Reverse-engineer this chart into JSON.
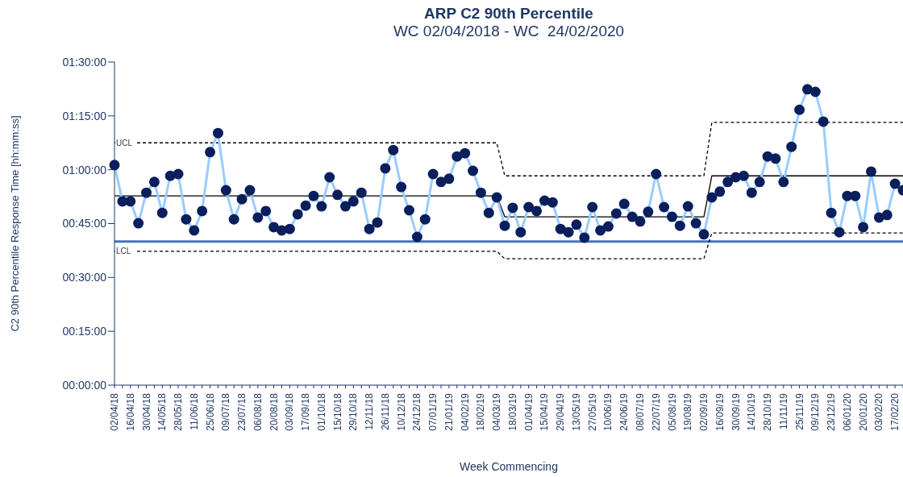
{
  "chart_data": {
    "type": "line",
    "title": "ARP C2 90th Percentile",
    "subtitle": "WC 02/04/2018 - WC  24/02/2020",
    "xlabel": "Week Commencing",
    "ylabel": "C2 90th Percentile Response Time [hh:mm:ss]",
    "categories": [
      "02/04/18",
      null,
      "16/04/18",
      null,
      "30/04/18",
      null,
      "14/05/18",
      null,
      "28/05/18",
      null,
      "11/06/18",
      null,
      "25/06/18",
      null,
      "09/07/18",
      null,
      "23/07/18",
      null,
      "06/08/18",
      null,
      "20/08/18",
      null,
      "03/09/18",
      null,
      "17/09/18",
      null,
      "01/10/18",
      null,
      "15/10/18",
      null,
      "29/10/18",
      null,
      "12/11/18",
      null,
      "26/11/18",
      null,
      "10/12/18",
      null,
      "24/12/18",
      null,
      "07/01/19",
      null,
      "21/01/19",
      null,
      "04/02/19",
      null,
      "18/02/19",
      null,
      "04/03/19",
      null,
      "18/03/19",
      null,
      "01/04/19",
      null,
      "15/04/19",
      null,
      "29/04/19",
      null,
      "13/05/19",
      null,
      "27/05/19",
      null,
      "10/06/19",
      null,
      "24/06/19",
      null,
      "08/07/19",
      null,
      "22/07/19",
      null,
      "05/08/19",
      null,
      "19/08/19",
      null,
      "02/09/19",
      null,
      "16/09/19",
      null,
      "30/09/19",
      null,
      "14/10/19",
      null,
      "28/10/19",
      null,
      "11/11/19",
      null,
      "25/11/19",
      null,
      "09/12/19",
      null,
      "23/12/19",
      null,
      "06/01/20",
      null,
      "20/01/20",
      null,
      "03/02/20",
      null,
      "17/02/20",
      null
    ],
    "series": [
      {
        "color": "#99ccff",
        "marker": "circle",
        "values": [
          61.3,
          51.2,
          51.2,
          45.1,
          53.6,
          56.6,
          48.0,
          58.3,
          58.8,
          46.2,
          43.1,
          48.5,
          64.9,
          70.2,
          54.3,
          46.2,
          51.8,
          54.3,
          46.7,
          48.5,
          44.0,
          43.1,
          43.5,
          47.6,
          50.0,
          52.7,
          49.8,
          57.9,
          53.0,
          49.8,
          51.2,
          53.6,
          43.5,
          45.3,
          60.4,
          65.5,
          55.2,
          48.7,
          41.3,
          46.2,
          58.8,
          56.6,
          57.5,
          63.7,
          64.6,
          59.7,
          53.6,
          48.0,
          52.3,
          44.4,
          49.4,
          42.6,
          49.6,
          48.5,
          51.4,
          50.9,
          43.5,
          42.6,
          44.7,
          41.1,
          49.6,
          43.1,
          44.2,
          47.8,
          50.5,
          46.9,
          45.6,
          48.3,
          58.8,
          49.6,
          46.9,
          44.4,
          49.8,
          45.1,
          42.0,
          52.3,
          53.9,
          56.6,
          57.9,
          58.3,
          53.6,
          56.6,
          63.7,
          63.1,
          56.6,
          66.4,
          76.7,
          82.4,
          81.7,
          73.4,
          48.0,
          42.6,
          52.7,
          52.7,
          44.0,
          59.5,
          46.7,
          47.4,
          56.1,
          54.3
        ]
      },
      {
        "color": "#000000",
        "marker": "none",
        "line_style": "solid",
        "values": [
          52.7,
          52.7,
          52.7,
          52.7,
          52.7,
          52.7,
          52.7,
          52.7,
          52.7,
          52.7,
          52.7,
          52.7,
          52.7,
          52.7,
          52.7,
          52.7,
          52.7,
          52.7,
          52.7,
          52.7,
          52.7,
          52.7,
          52.7,
          52.7,
          52.7,
          52.7,
          52.7,
          52.7,
          52.7,
          52.7,
          52.7,
          52.7,
          52.7,
          52.7,
          52.7,
          52.7,
          52.7,
          52.7,
          52.7,
          52.7,
          52.7,
          52.7,
          52.7,
          52.7,
          52.7,
          52.7,
          52.7,
          52.7,
          52.7,
          46.9,
          46.9,
          46.9,
          46.9,
          46.9,
          46.9,
          46.9,
          46.9,
          46.9,
          46.9,
          46.9,
          46.9,
          46.9,
          46.9,
          46.9,
          46.9,
          46.9,
          46.9,
          46.9,
          46.9,
          46.9,
          46.9,
          46.9,
          46.9,
          46.9,
          46.9,
          58.3,
          58.3,
          58.3,
          58.3,
          58.3,
          58.3,
          58.3,
          58.3,
          58.3,
          58.3,
          58.3,
          58.3,
          58.3,
          58.3,
          58.3,
          58.3,
          58.3,
          58.3,
          58.3,
          58.3,
          58.3,
          58.3,
          58.3,
          58.3,
          58.3
        ]
      },
      {
        "name": "UCL",
        "color": "#000000",
        "marker": "none",
        "line_style": "dashed",
        "values": [
          67.5,
          67.5,
          67.5,
          67.5,
          67.5,
          67.5,
          67.5,
          67.5,
          67.5,
          67.5,
          67.5,
          67.5,
          67.5,
          67.5,
          67.5,
          67.5,
          67.5,
          67.5,
          67.5,
          67.5,
          67.5,
          67.5,
          67.5,
          67.5,
          67.5,
          67.5,
          67.5,
          67.5,
          67.5,
          67.5,
          67.5,
          67.5,
          67.5,
          67.5,
          67.5,
          67.5,
          67.5,
          67.5,
          67.5,
          67.5,
          67.5,
          67.5,
          67.5,
          67.5,
          67.5,
          67.5,
          67.5,
          67.5,
          67.5,
          58.3,
          58.3,
          58.3,
          58.3,
          58.3,
          58.3,
          58.3,
          58.3,
          58.3,
          58.3,
          58.3,
          58.3,
          58.3,
          58.3,
          58.3,
          58.3,
          58.3,
          58.3,
          58.3,
          58.3,
          58.3,
          58.3,
          58.3,
          58.3,
          58.3,
          58.3,
          73.2,
          73.2,
          73.2,
          73.2,
          73.2,
          73.2,
          73.2,
          73.2,
          73.2,
          73.2,
          73.2,
          73.2,
          73.2,
          73.2,
          73.2,
          73.2,
          73.2,
          73.2,
          73.2,
          73.2,
          73.2,
          73.2,
          73.2,
          73.2,
          73.2
        ]
      },
      {
        "name": "LCL",
        "color": "#000000",
        "marker": "none",
        "line_style": "dashed",
        "values": [
          37.3,
          37.3,
          37.3,
          37.3,
          37.3,
          37.3,
          37.3,
          37.3,
          37.3,
          37.3,
          37.3,
          37.3,
          37.3,
          37.3,
          37.3,
          37.3,
          37.3,
          37.3,
          37.3,
          37.3,
          37.3,
          37.3,
          37.3,
          37.3,
          37.3,
          37.3,
          37.3,
          37.3,
          37.3,
          37.3,
          37.3,
          37.3,
          37.3,
          37.3,
          37.3,
          37.3,
          37.3,
          37.3,
          37.3,
          37.3,
          37.3,
          37.3,
          37.3,
          37.3,
          37.3,
          37.3,
          37.3,
          37.3,
          37.3,
          35.2,
          35.2,
          35.2,
          35.2,
          35.2,
          35.2,
          35.2,
          35.2,
          35.2,
          35.2,
          35.2,
          35.2,
          35.2,
          35.2,
          35.2,
          35.2,
          35.2,
          35.2,
          35.2,
          35.2,
          35.2,
          35.2,
          35.2,
          35.2,
          35.2,
          35.2,
          42.4,
          42.4,
          42.4,
          42.4,
          42.4,
          42.4,
          42.4,
          42.4,
          42.4,
          42.4,
          42.4,
          42.4,
          42.4,
          42.4,
          42.4,
          42.4,
          42.4,
          42.4,
          42.4,
          42.4,
          42.4,
          42.4,
          42.4,
          42.4,
          42.4
        ]
      }
    ],
    "ylim": [
      0,
      90
    ],
    "yticks": [
      {
        "value": 0,
        "label": "00:00:00"
      },
      {
        "value": 15,
        "label": "00:15:00"
      },
      {
        "value": 30,
        "label": "00:30:00"
      },
      {
        "value": 45,
        "label": "00:45:00"
      },
      {
        "value": 60,
        "label": "01:00:00"
      },
      {
        "value": 75,
        "label": "01:15:00"
      },
      {
        "value": 90,
        "label": "01:30:00"
      }
    ],
    "ref_lines": [
      {
        "axis": "y",
        "value": 40,
        "color": "#4472c4"
      }
    ],
    "grid": false,
    "legend": false
  }
}
